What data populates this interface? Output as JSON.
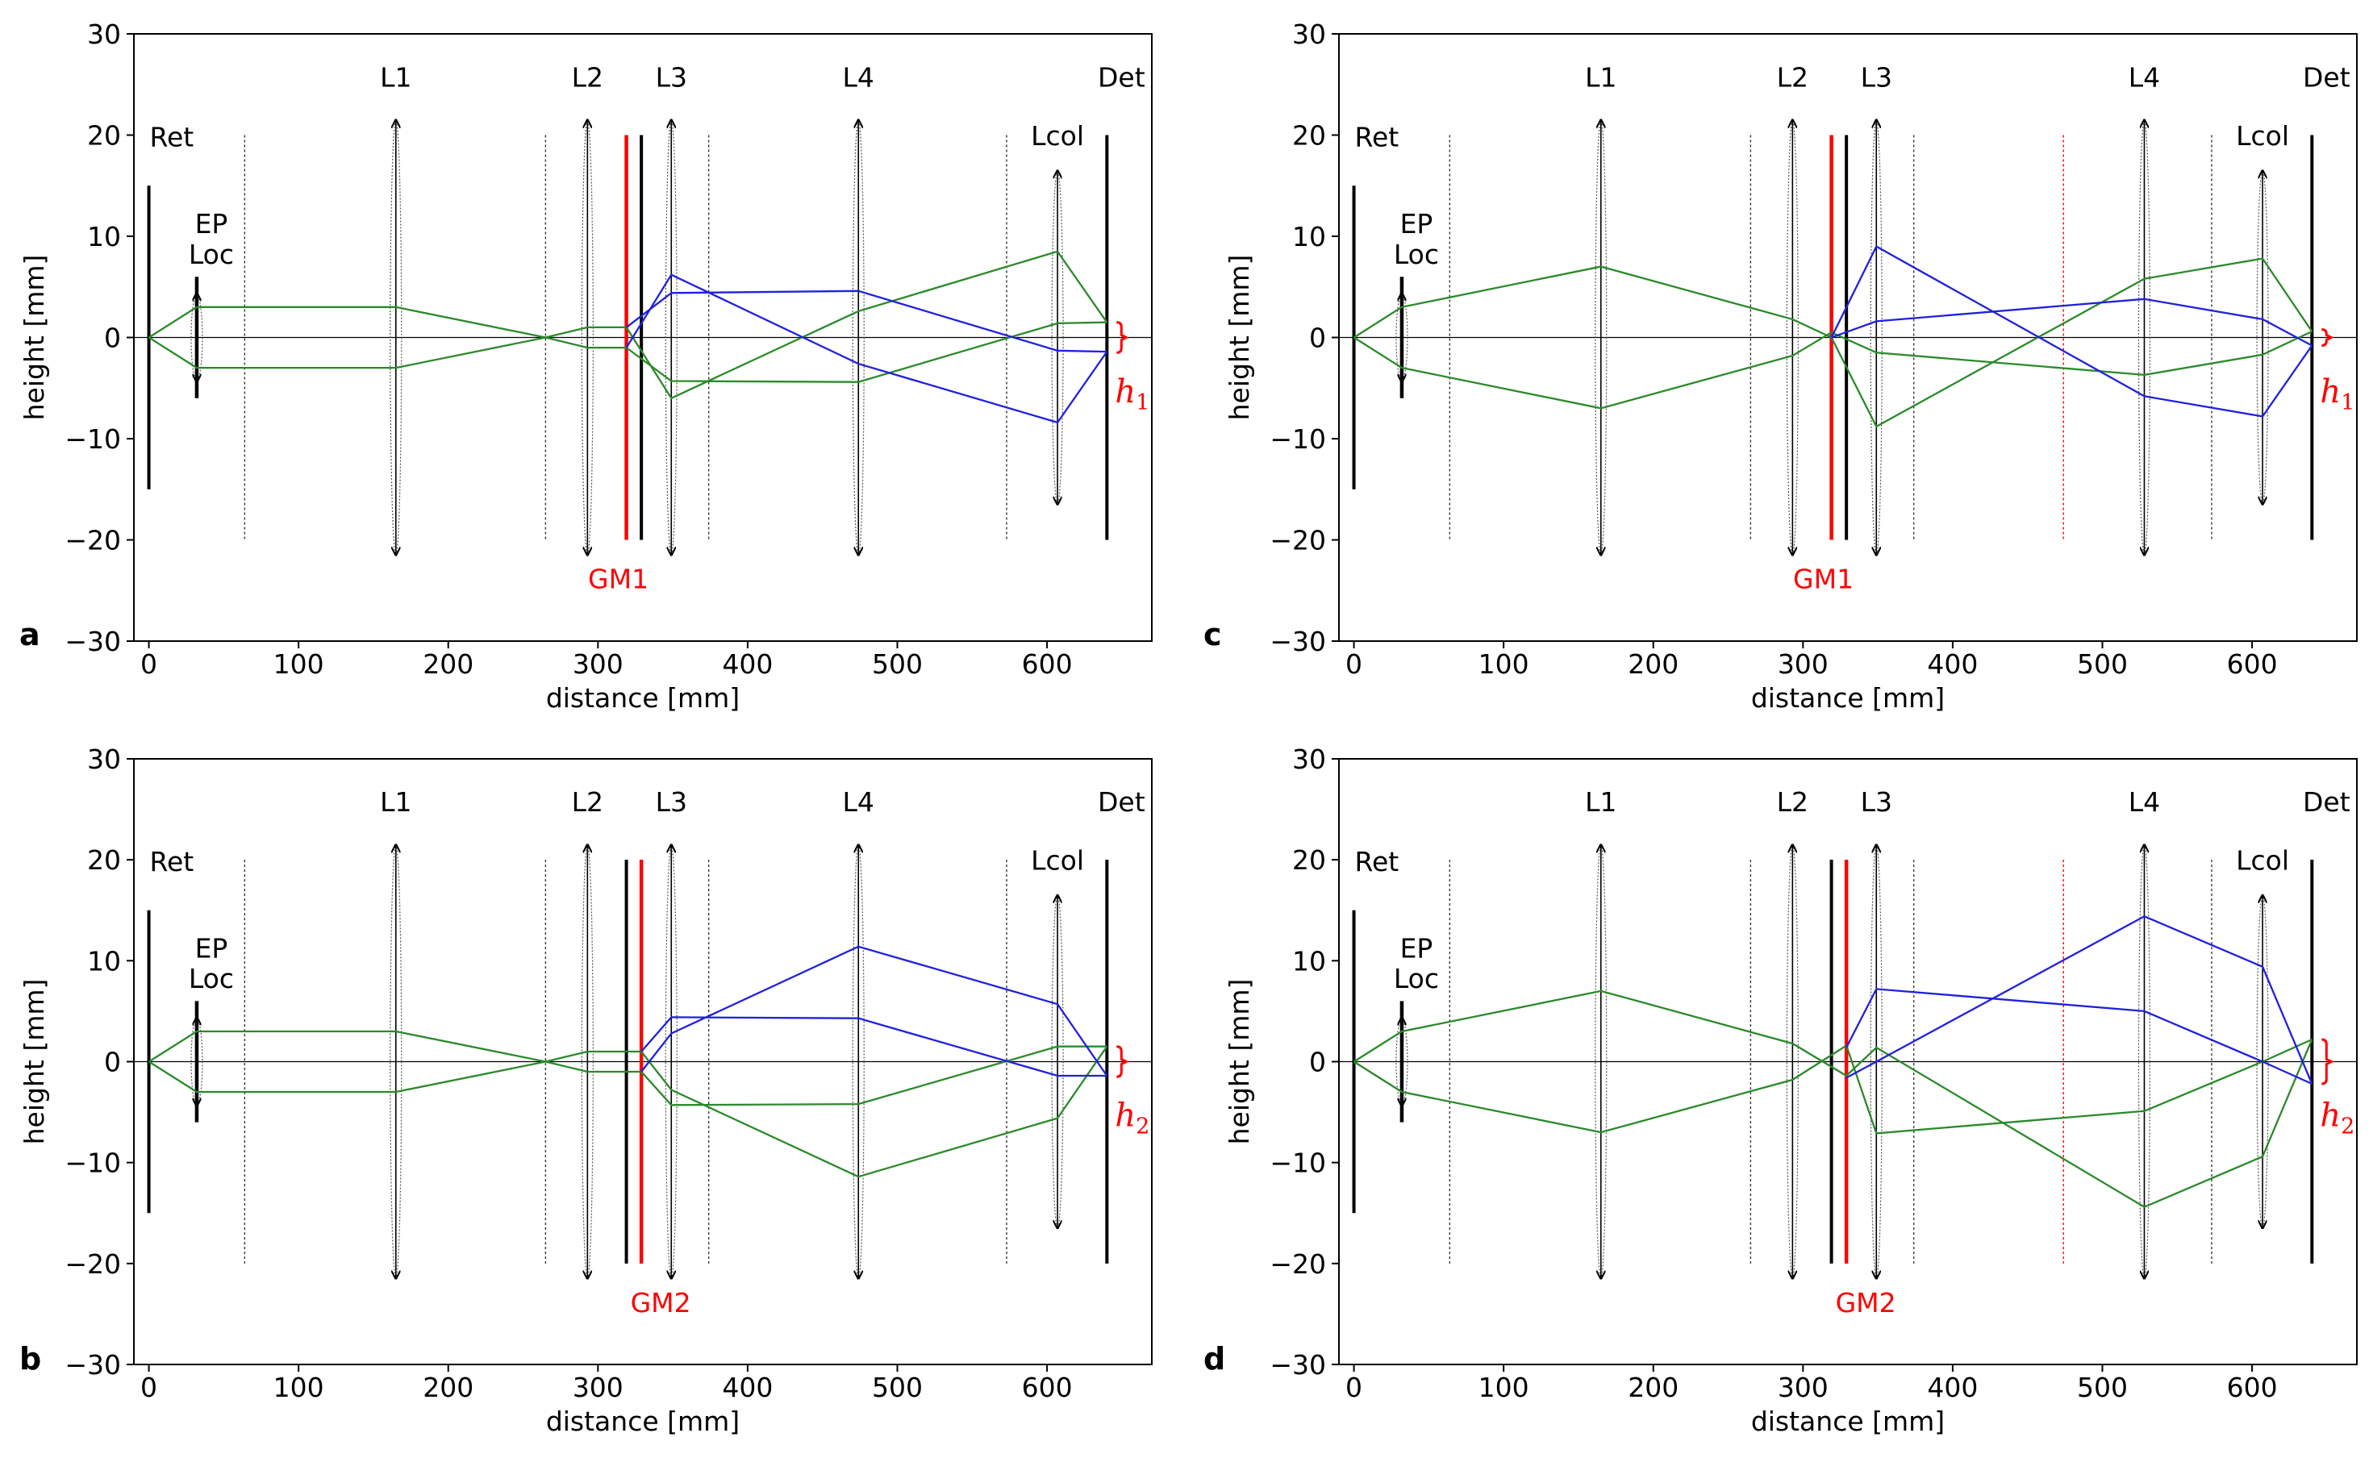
{
  "chart_data": [
    {
      "type": "line",
      "panel_letter": "a",
      "xlabel": "distance [mm]",
      "ylabel": "height [mm]",
      "xlim": [
        -10,
        670
      ],
      "ylim": [
        -30,
        30
      ],
      "xticks": [
        0,
        100,
        200,
        300,
        400,
        500,
        600
      ],
      "yticks": [
        -30,
        -20,
        -10,
        0,
        10,
        20,
        30
      ],
      "grid": false,
      "gm": {
        "label": "GM1",
        "x": 319
      },
      "mirror": {
        "x": 329
      },
      "highlight_planes": [],
      "h": {
        "label": "h",
        "sub": "1",
        "y1": -1.5,
        "y2": 1.5
      },
      "rays_green": [
        [
          [
            0,
            0
          ],
          [
            32,
            3
          ],
          [
            165,
            3
          ],
          [
            265,
            0
          ],
          [
            293,
            1
          ],
          [
            319,
            1
          ],
          [
            349,
            -6
          ],
          [
            474,
            2.6
          ],
          [
            607,
            8.5
          ],
          [
            640,
            1.5
          ]
        ],
        [
          [
            0,
            0
          ],
          [
            32,
            -3
          ],
          [
            165,
            -3
          ],
          [
            265,
            0
          ],
          [
            293,
            -1
          ],
          [
            319,
            -1
          ],
          [
            349,
            -4.3
          ],
          [
            474,
            -4.4
          ],
          [
            607,
            1.4
          ],
          [
            640,
            1.5
          ]
        ]
      ],
      "rays_blue": [
        [
          [
            319,
            1
          ],
          [
            349,
            4.4
          ],
          [
            474,
            4.6
          ],
          [
            607,
            -1.3
          ],
          [
            640,
            -1.4
          ]
        ],
        [
          [
            319,
            -1
          ],
          [
            349,
            6.2
          ],
          [
            474,
            -2.6
          ],
          [
            607,
            -8.4
          ],
          [
            640,
            -1.4
          ]
        ]
      ]
    },
    {
      "type": "line",
      "panel_letter": "b",
      "xlabel": "distance [mm]",
      "ylabel": "height [mm]",
      "xlim": [
        -10,
        670
      ],
      "ylim": [
        -30,
        30
      ],
      "xticks": [
        0,
        100,
        200,
        300,
        400,
        500,
        600
      ],
      "yticks": [
        -30,
        -20,
        -10,
        0,
        10,
        20,
        30
      ],
      "grid": false,
      "gm": {
        "label": "GM2",
        "x": 329
      },
      "mirror": {
        "x": 319
      },
      "highlight_planes": [],
      "h": {
        "label": "h",
        "sub": "2",
        "y1": -1.5,
        "y2": 1.5
      },
      "rays_green": [
        [
          [
            0,
            0
          ],
          [
            32,
            3
          ],
          [
            165,
            3
          ],
          [
            265,
            0
          ],
          [
            293,
            1
          ],
          [
            329,
            1
          ],
          [
            349,
            -2.8
          ],
          [
            474,
            -11.4
          ],
          [
            607,
            -5.6
          ],
          [
            640,
            1.5
          ]
        ],
        [
          [
            0,
            0
          ],
          [
            32,
            -3
          ],
          [
            165,
            -3
          ],
          [
            265,
            0
          ],
          [
            293,
            -1
          ],
          [
            329,
            -1
          ],
          [
            349,
            -4.3
          ],
          [
            474,
            -4.2
          ],
          [
            607,
            1.5
          ],
          [
            640,
            1.5
          ]
        ]
      ],
      "rays_blue": [
        [
          [
            329,
            1
          ],
          [
            349,
            4.4
          ],
          [
            474,
            4.3
          ],
          [
            607,
            -1.4
          ],
          [
            640,
            -1.4
          ]
        ],
        [
          [
            329,
            -1
          ],
          [
            349,
            2.8
          ],
          [
            474,
            11.4
          ],
          [
            607,
            5.7
          ],
          [
            640,
            -1.4
          ]
        ]
      ]
    },
    {
      "type": "line",
      "panel_letter": "c",
      "xlabel": "distance [mm]",
      "ylabel": "height [mm]",
      "xlim": [
        -10,
        670
      ],
      "ylim": [
        -30,
        30
      ],
      "xticks": [
        0,
        100,
        200,
        300,
        400,
        500,
        600
      ],
      "yticks": [
        -30,
        -20,
        -10,
        0,
        10,
        20,
        30
      ],
      "grid": false,
      "gm": {
        "label": "GM1",
        "x": 319
      },
      "mirror": {
        "x": 329
      },
      "highlight_planes": [
        474
      ],
      "h": {
        "label": "h",
        "sub": "1",
        "y1": -0.8,
        "y2": 0.8
      },
      "rays_green": [
        [
          [
            0,
            0
          ],
          [
            32,
            3
          ],
          [
            165,
            7
          ],
          [
            293,
            1.8
          ],
          [
            319,
            0
          ],
          [
            349,
            -8.8
          ],
          [
            528,
            5.8
          ],
          [
            607,
            7.8
          ],
          [
            640,
            0.6
          ]
        ],
        [
          [
            0,
            0
          ],
          [
            32,
            -3
          ],
          [
            165,
            -7
          ],
          [
            293,
            -1.8
          ],
          [
            319,
            0.5
          ],
          [
            349,
            -1.5
          ],
          [
            528,
            -3.7
          ],
          [
            607,
            -1.7
          ],
          [
            640,
            0.6
          ]
        ]
      ],
      "rays_blue": [
        [
          [
            319,
            0
          ],
          [
            349,
            1.6
          ],
          [
            528,
            3.8
          ],
          [
            607,
            1.8
          ],
          [
            640,
            -0.8
          ]
        ],
        [
          [
            319,
            0
          ],
          [
            349,
            9
          ],
          [
            528,
            -5.8
          ],
          [
            607,
            -7.8
          ],
          [
            640,
            -0.8
          ]
        ]
      ]
    },
    {
      "type": "line",
      "panel_letter": "d",
      "xlabel": "distance [mm]",
      "ylabel": "height [mm]",
      "xlim": [
        -10,
        670
      ],
      "ylim": [
        -30,
        30
      ],
      "xticks": [
        0,
        100,
        200,
        300,
        400,
        500,
        600
      ],
      "yticks": [
        -30,
        -20,
        -10,
        0,
        10,
        20,
        30
      ],
      "grid": false,
      "gm": {
        "label": "GM2",
        "x": 329
      },
      "mirror": {
        "x": 319
      },
      "highlight_planes": [
        474
      ],
      "h": {
        "label": "h",
        "sub": "2",
        "y1": -2.2,
        "y2": 2.2
      },
      "rays_green": [
        [
          [
            0,
            0
          ],
          [
            32,
            3
          ],
          [
            165,
            7
          ],
          [
            293,
            1.8
          ],
          [
            329,
            -1.4
          ],
          [
            349,
            1.4
          ],
          [
            528,
            -14.4
          ],
          [
            607,
            -9.4
          ],
          [
            640,
            2.2
          ]
        ],
        [
          [
            0,
            0
          ],
          [
            32,
            -3
          ],
          [
            165,
            -7
          ],
          [
            293,
            -1.8
          ],
          [
            329,
            1.6
          ],
          [
            349,
            -7.1
          ],
          [
            528,
            -4.9
          ],
          [
            607,
            0
          ],
          [
            640,
            2.2
          ]
        ]
      ],
      "rays_blue": [
        [
          [
            329,
            -1.6
          ],
          [
            349,
            0
          ],
          [
            528,
            14.4
          ],
          [
            607,
            9.4
          ],
          [
            640,
            -2.2
          ]
        ],
        [
          [
            329,
            1.4
          ],
          [
            349,
            7.2
          ],
          [
            528,
            5
          ],
          [
            607,
            0
          ],
          [
            640,
            -2.2
          ]
        ]
      ]
    }
  ],
  "optical_layout": {
    "planes": [
      64,
      265,
      374,
      573
    ],
    "retina": {
      "label": "Ret",
      "x": 0,
      "half_height": 15
    },
    "ep": {
      "label_line1": "EP",
      "label_line2": "Loc",
      "x": 32,
      "half_height": 6
    },
    "detector": {
      "label": "Det",
      "x": 640,
      "half_height": 20
    },
    "mirror_half_height": 20,
    "lenses": [
      {
        "label": "L1",
        "x": 165,
        "half_height": 21.5
      },
      {
        "label": "L2",
        "x": 293,
        "half_height": 21.5
      },
      {
        "label": "L3",
        "x": 349,
        "half_height": 21.5
      },
      {
        "label": "L4",
        "x": 474,
        "alt_x": 528,
        "half_height": 21.5
      },
      {
        "label": "Lcol",
        "x": 607,
        "half_height": 16.5
      }
    ]
  },
  "colors": {
    "green_ray": "#2a8a2a",
    "blue_ray": "#2020e0",
    "red": "#ff0000",
    "black": "#000000"
  }
}
